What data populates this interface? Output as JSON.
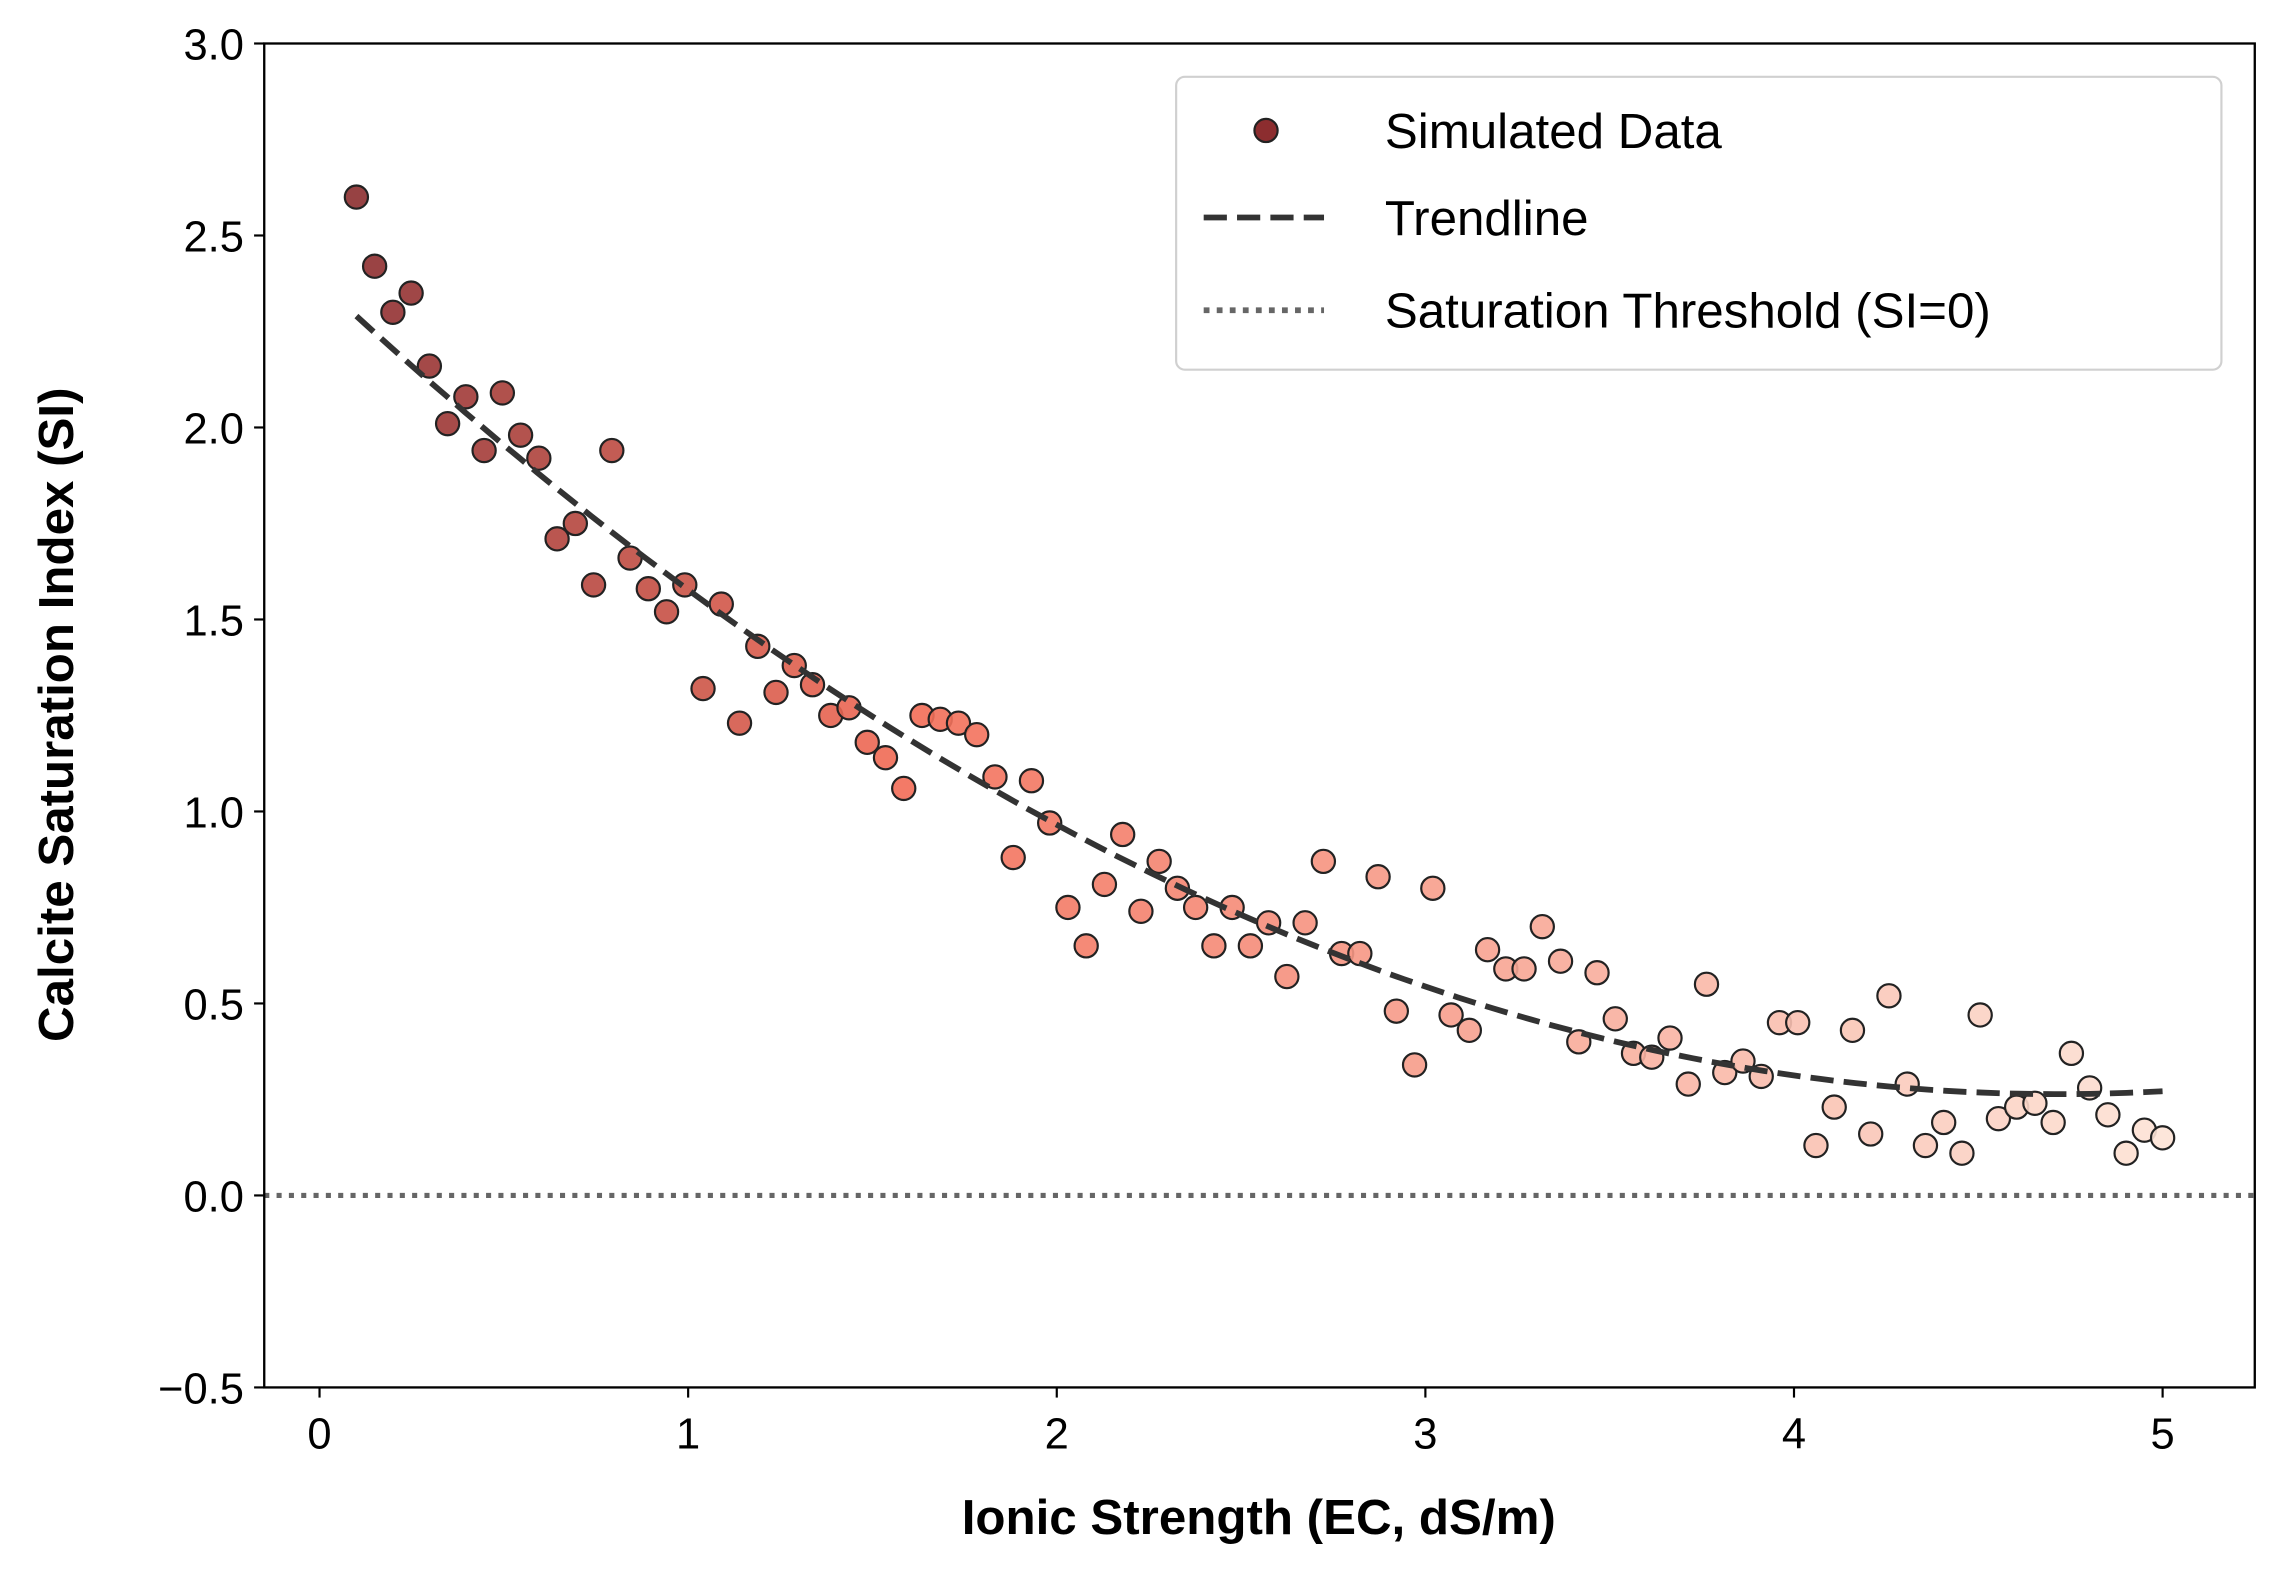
{
  "chart_data": {
    "type": "scatter",
    "title": "",
    "xlabel": "Ionic Strength (EC, dS/m)",
    "ylabel": "Calcite Saturation Index (SI)",
    "xlim": [
      -0.15,
      5.25
    ],
    "ylim": [
      -0.5,
      3.0
    ],
    "xticks": [
      "0",
      "1",
      "2",
      "3",
      "4",
      "5"
    ],
    "xtick_values": [
      0,
      1,
      2,
      3,
      4,
      5
    ],
    "yticks": [
      "−0.5",
      "0.0",
      "0.5",
      "1.0",
      "1.5",
      "2.0",
      "2.5",
      "3.0"
    ],
    "ytick_values": [
      -0.5,
      0,
      0.5,
      1.0,
      1.5,
      2.0,
      2.5,
      3.0
    ],
    "grid": false,
    "legend_position": "top-right",
    "legend": [
      "Simulated Data",
      "Trendline",
      "Saturation Threshold (SI=0)"
    ],
    "colors": {
      "scatter_start": "#8c2d2f",
      "scatter_mid": "#f26b55",
      "scatter_end": "#fde3d6",
      "trendline": "#333333",
      "threshold": "#666666",
      "edge": "#222222"
    },
    "series": [
      {
        "name": "Simulated Data",
        "type": "scatter",
        "x_start": 0.1,
        "x_end": 5.0,
        "y": [
          2.6,
          2.42,
          2.3,
          2.35,
          2.16,
          2.01,
          2.08,
          1.94,
          2.09,
          1.98,
          1.92,
          1.71,
          1.75,
          1.59,
          1.94,
          1.66,
          1.58,
          1.52,
          1.59,
          1.32,
          1.54,
          1.23,
          1.43,
          1.31,
          1.38,
          1.33,
          1.25,
          1.27,
          1.18,
          1.14,
          1.06,
          1.25,
          1.24,
          1.23,
          1.2,
          1.09,
          0.88,
          1.08,
          0.97,
          0.75,
          0.65,
          0.81,
          0.94,
          0.74,
          0.87,
          0.8,
          0.75,
          0.65,
          0.75,
          0.65,
          0.71,
          0.57,
          0.71,
          0.87,
          0.63,
          0.63,
          0.83,
          0.48,
          0.34,
          0.8,
          0.47,
          0.43,
          0.64,
          0.59,
          0.59,
          0.7,
          0.61,
          0.4,
          0.58,
          0.46,
          0.37,
          0.36,
          0.41,
          0.29,
          0.55,
          0.32,
          0.35,
          0.31,
          0.45,
          0.45,
          0.13,
          0.23,
          0.43,
          0.16,
          0.52,
          0.29,
          0.13,
          0.19,
          0.11,
          0.47,
          0.2,
          0.23,
          0.24,
          0.19,
          0.37,
          0.28,
          0.21,
          0.11,
          0.17,
          0.15
        ]
      },
      {
        "name": "Trendline",
        "type": "line",
        "style": "dashed",
        "polynomial_coeffs": {
          "a": 0.0951,
          "b": -0.897,
          "c": 2.379
        },
        "x_range": [
          0.1,
          5.0
        ]
      },
      {
        "name": "Saturation Threshold (SI=0)",
        "type": "hline",
        "style": "dotted",
        "y": 0
      }
    ]
  }
}
